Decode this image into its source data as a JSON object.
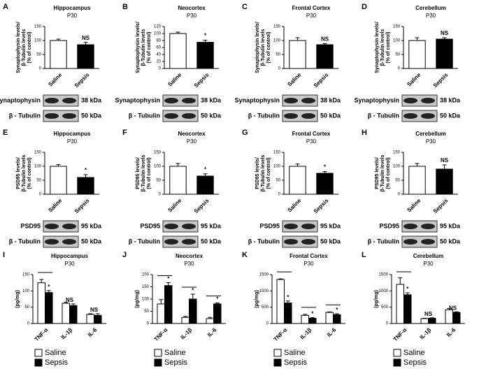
{
  "chart_data": [
    {
      "type": "bar",
      "panel": "A",
      "title": "Hippocampus",
      "subtitle": "P30",
      "ylabel": [
        "Synaptophysin levels/",
        "β-Tubulin levels",
        "(% of control)"
      ],
      "categories": [
        "Saline",
        "Sepsis"
      ],
      "values": [
        100,
        85
      ],
      "errors": [
        5,
        8
      ],
      "colors": [
        "#ffffff",
        "#000000"
      ],
      "annotation": "NS",
      "ylim": [
        0,
        150
      ],
      "yticks": [
        0,
        50,
        100,
        150
      ],
      "blots": [
        {
          "protein": "Synaptophysin",
          "kda": "38 kDa"
        },
        {
          "protein": "β - Tubulin",
          "kda": "50 kDa"
        }
      ]
    },
    {
      "type": "bar",
      "panel": "B",
      "title": "Neocortex",
      "subtitle": "P30",
      "ylabel": [
        "Synaptophysin levels/",
        "β-Tubulin levels",
        "(% of control)"
      ],
      "categories": [
        "Saline",
        "Sepsis"
      ],
      "values": [
        100,
        75
      ],
      "errors": [
        4,
        6
      ],
      "colors": [
        "#ffffff",
        "#000000"
      ],
      "annotation": "*",
      "ylim": [
        0,
        120
      ],
      "yticks": [
        0,
        20,
        40,
        60,
        80,
        100,
        120
      ],
      "blots": [
        {
          "protein": "Synaptophysin",
          "kda": "38 kDa"
        },
        {
          "protein": "β - Tubulin",
          "kda": "50 kDa"
        }
      ]
    },
    {
      "type": "bar",
      "panel": "C",
      "title": "Frontal Cortex",
      "subtitle": "P30",
      "ylabel": [
        "Synaptophysin levels/",
        "β-Tubulin levels",
        "(% of control)"
      ],
      "categories": [
        "Saline",
        "Sepsis"
      ],
      "values": [
        100,
        85
      ],
      "errors": [
        10,
        4
      ],
      "colors": [
        "#ffffff",
        "#000000"
      ],
      "annotation": "NS",
      "ylim": [
        0,
        150
      ],
      "yticks": [
        0,
        50,
        100,
        150
      ],
      "blots": [
        {
          "protein": "Synaptophysin",
          "kda": "38 kDa"
        },
        {
          "protein": "β - Tubulin",
          "kda": "50 kDa"
        }
      ]
    },
    {
      "type": "bar",
      "panel": "D",
      "title": "Cerebellum",
      "subtitle": "P30",
      "ylabel": [
        "Synaptophysin levels/",
        "β-Tubulin levels",
        "(% of control)"
      ],
      "categories": [
        "Saline",
        "Sepsis"
      ],
      "values": [
        100,
        105
      ],
      "errors": [
        10,
        5
      ],
      "colors": [
        "#ffffff",
        "#000000"
      ],
      "annotation": "NS",
      "ylim": [
        0,
        150
      ],
      "yticks": [
        0,
        50,
        100,
        150
      ],
      "blots": [
        {
          "protein": "Synaptophysin",
          "kda": "38 kDa"
        },
        {
          "protein": "β - Tubulin",
          "kda": "50 kDa"
        }
      ]
    },
    {
      "type": "bar",
      "panel": "E",
      "title": "Hippocampus",
      "subtitle": "P30",
      "ylabel": [
        "PSD95 levels/",
        "β-Tubulin levels",
        "(% of control)"
      ],
      "categories": [
        "Saline",
        "Sepsis"
      ],
      "values": [
        100,
        60
      ],
      "errors": [
        6,
        10
      ],
      "colors": [
        "#ffffff",
        "#000000"
      ],
      "annotation": "*",
      "ylim": [
        0,
        150
      ],
      "yticks": [
        0,
        50,
        100,
        150
      ],
      "blots": [
        {
          "protein": "PSD95",
          "kda": "95 kDa"
        },
        {
          "protein": "β - Tubulin",
          "kda": "50 kDa"
        }
      ]
    },
    {
      "type": "bar",
      "panel": "F",
      "title": "Neocortex",
      "subtitle": "P30",
      "ylabel": [
        "PSD95 levels/",
        "β-Tubulin levels",
        "(% of control)"
      ],
      "categories": [
        "Saline",
        "Sepsis"
      ],
      "values": [
        100,
        65
      ],
      "errors": [
        10,
        8
      ],
      "colors": [
        "#ffffff",
        "#000000"
      ],
      "annotation": "*",
      "ylim": [
        0,
        150
      ],
      "yticks": [
        0,
        50,
        100,
        150
      ],
      "blots": [
        {
          "protein": "PSD95",
          "kda": "95 kDa"
        },
        {
          "protein": "β - Tubulin",
          "kda": "50 kDa"
        }
      ]
    },
    {
      "type": "bar",
      "panel": "G",
      "title": "Frontal Cortex",
      "subtitle": "P30",
      "ylabel": [
        "PSD95 levels/",
        "β-Tubulin levels",
        "(% of control)"
      ],
      "categories": [
        "Saline",
        "Sepsis"
      ],
      "values": [
        100,
        75
      ],
      "errors": [
        8,
        6
      ],
      "colors": [
        "#ffffff",
        "#000000"
      ],
      "annotation": "*",
      "ylim": [
        0,
        150
      ],
      "yticks": [
        0,
        50,
        100,
        150
      ],
      "blots": [
        {
          "protein": "PSD95",
          "kda": "95 kDa"
        },
        {
          "protein": "β - Tubulin",
          "kda": "50 kDa"
        }
      ]
    },
    {
      "type": "bar",
      "panel": "H",
      "title": "Cerebellum",
      "subtitle": "P30",
      "ylabel": [
        "PSD95 levels/",
        "β-Tubulin levels",
        "(% of control)"
      ],
      "categories": [
        "Saline",
        "Sepsis"
      ],
      "values": [
        100,
        90
      ],
      "errors": [
        10,
        15
      ],
      "colors": [
        "#ffffff",
        "#000000"
      ],
      "annotation": "NS",
      "ylim": [
        0,
        150
      ],
      "yticks": [
        0,
        50,
        100,
        150
      ],
      "blots": [
        {
          "protein": "PSD95",
          "kda": "95 kDa"
        },
        {
          "protein": "β - Tubulin",
          "kda": "50 kDa"
        }
      ]
    },
    {
      "type": "grouped_bar",
      "panel": "I",
      "title": "Hippocampus",
      "subtitle": "P30",
      "ylabel": [
        "(pg/mg)"
      ],
      "categories": [
        "TNF-α",
        "IL-1β",
        "IL-6"
      ],
      "series": [
        {
          "name": "Saline",
          "color": "#ffffff",
          "values": [
            125,
            62,
            28
          ],
          "errors": [
            10,
            3,
            2
          ]
        },
        {
          "name": "Sepsis",
          "color": "#000000",
          "values": [
            95,
            55,
            25
          ],
          "errors": [
            6,
            5,
            5
          ]
        }
      ],
      "annotations": [
        "*",
        "NS",
        "NS"
      ],
      "ylim": [
        0,
        150
      ],
      "yticks": [
        0,
        50,
        100,
        150
      ]
    },
    {
      "type": "grouped_bar",
      "panel": "J",
      "title": "Neocortex",
      "subtitle": "P30",
      "ylabel": [
        "(pg/mg)"
      ],
      "categories": [
        "TNF-α",
        "IL-1β",
        "IL-6"
      ],
      "series": [
        {
          "name": "Saline",
          "color": "#ffffff",
          "values": [
            80,
            25,
            20
          ],
          "errors": [
            18,
            4,
            5
          ]
        },
        {
          "name": "Sepsis",
          "color": "#000000",
          "values": [
            155,
            100,
            80
          ],
          "errors": [
            12,
            20,
            4
          ]
        }
      ],
      "annotations": [
        "*",
        "*",
        "*"
      ],
      "ylim": [
        0,
        200
      ],
      "yticks": [
        0,
        50,
        100,
        150,
        200
      ]
    },
    {
      "type": "grouped_bar",
      "panel": "K",
      "title": "Frontal Cortex",
      "subtitle": "P30",
      "ylabel": [
        "(pg/mg)"
      ],
      "categories": [
        "TNF-α",
        "IL-1β",
        "IL-6"
      ],
      "series": [
        {
          "name": "Saline",
          "color": "#ffffff",
          "values": [
            1350,
            250,
            340
          ],
          "errors": [
            20,
            30,
            15
          ]
        },
        {
          "name": "Sepsis",
          "color": "#000000",
          "values": [
            630,
            160,
            270
          ],
          "errors": [
            60,
            20,
            30
          ]
        }
      ],
      "annotations": [
        "*",
        "*",
        "*"
      ],
      "ylim": [
        0,
        1500
      ],
      "yticks": [
        0,
        500,
        1000,
        1500
      ]
    },
    {
      "type": "grouped_bar",
      "panel": "L",
      "title": "Cerebellum",
      "subtitle": "P30",
      "ylabel": [
        "(pg/mg)"
      ],
      "categories": [
        "TNF-α",
        "IL-1β",
        "IL-6"
      ],
      "series": [
        {
          "name": "Saline",
          "color": "#ffffff",
          "values": [
            1200,
            150,
            420
          ],
          "errors": [
            200,
            10,
            40
          ]
        },
        {
          "name": "Sepsis",
          "color": "#000000",
          "values": [
            880,
            160,
            340
          ],
          "errors": [
            60,
            15,
            20
          ]
        }
      ],
      "annotations": [
        "*",
        "NS",
        "NS"
      ],
      "ylim": [
        0,
        1500
      ],
      "yticks": [
        0,
        500,
        1000,
        1500
      ]
    }
  ]
}
